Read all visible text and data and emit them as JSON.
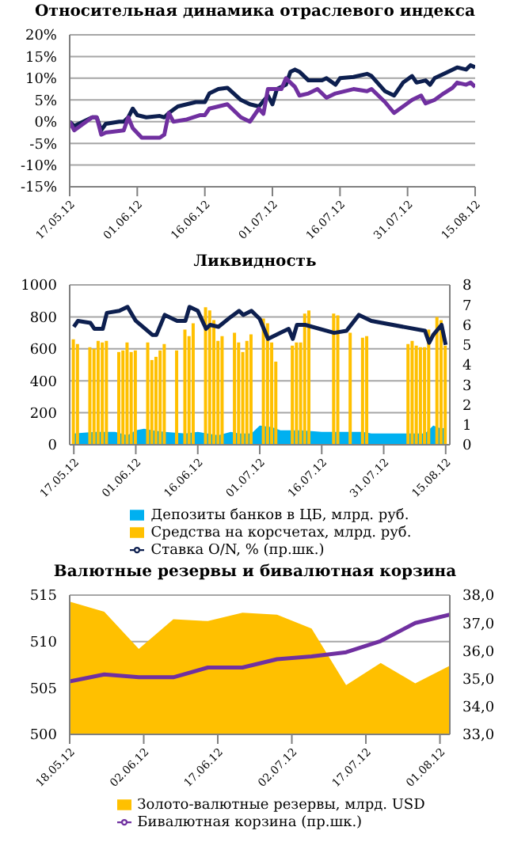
{
  "chart_data": [
    {
      "type": "line",
      "title": "Относительная динамика отраслевого индекса",
      "grid": "y",
      "marker": "none",
      "legend": false,
      "xlim": [
        "2012-05-17",
        "2012-08-15"
      ],
      "xticks": [
        {
          "value": "2012-05-17",
          "label": "17.05.12"
        },
        {
          "value": "2012-06-01",
          "label": "01.06.12"
        },
        {
          "value": "2012-06-16",
          "label": "16.06.12"
        },
        {
          "value": "2012-07-01",
          "label": "01.07.12"
        },
        {
          "value": "2012-07-16",
          "label": "16.07.12"
        },
        {
          "value": "2012-07-31",
          "label": "31.07.12"
        },
        {
          "value": "2012-08-15",
          "label": "15.08.12"
        }
      ],
      "ylim": [
        -15,
        20
      ],
      "yticks": [
        {
          "value": -15,
          "label": "-15%"
        },
        {
          "value": -10,
          "label": "-10%"
        },
        {
          "value": -5,
          "label": "-5%"
        },
        {
          "value": 0,
          "label": "0%"
        },
        {
          "value": 5,
          "label": "5%"
        },
        {
          "value": 10,
          "label": "10%"
        },
        {
          "value": 15,
          "label": "15%"
        },
        {
          "value": 20,
          "label": "20%"
        }
      ],
      "series": [
        {
          "color": "#0d1f4f",
          "x": [
            "2012-05-17",
            "2012-05-18",
            "2012-05-22",
            "2012-05-23",
            "2012-05-24",
            "2012-05-25",
            "2012-05-28",
            "2012-05-29",
            "2012-05-30",
            "2012-05-31",
            "2012-06-01",
            "2012-06-03",
            "2012-06-06",
            "2012-06-07",
            "2012-06-08",
            "2012-06-10",
            "2012-06-12",
            "2012-06-14",
            "2012-06-16",
            "2012-06-17",
            "2012-06-19",
            "2012-06-21",
            "2012-06-24",
            "2012-06-26",
            "2012-06-28",
            "2012-06-30",
            "2012-07-01",
            "2012-07-02",
            "2012-07-04",
            "2012-07-05",
            "2012-07-06",
            "2012-07-07",
            "2012-07-09",
            "2012-07-12",
            "2012-07-13",
            "2012-07-15",
            "2012-07-16",
            "2012-07-19",
            "2012-07-22",
            "2012-07-23",
            "2012-07-26",
            "2012-07-28",
            "2012-07-30",
            "2012-08-01",
            "2012-08-02",
            "2012-08-04",
            "2012-08-05",
            "2012-08-06",
            "2012-08-09",
            "2012-08-11",
            "2012-08-13",
            "2012-08-14",
            "2012-08-15"
          ],
          "values": [
            0,
            -1,
            1,
            1,
            -2,
            -0.5,
            0,
            0,
            1,
            3,
            1.5,
            1,
            1.3,
            1,
            2,
            3.5,
            4,
            4.5,
            4.5,
            6.5,
            7.5,
            7.8,
            5,
            4,
            3.5,
            6,
            4,
            7.5,
            8.5,
            11.5,
            12,
            11.5,
            9.5,
            9.5,
            10,
            8.5,
            10,
            10.3,
            11,
            10.5,
            7,
            6,
            9,
            10.5,
            9,
            9.5,
            8.5,
            10,
            11.5,
            12.5,
            12,
            13,
            12.5
          ]
        },
        {
          "color": "#7030a0",
          "x": [
            "2012-05-17",
            "2012-05-18",
            "2012-05-22",
            "2012-05-23",
            "2012-05-24",
            "2012-05-25",
            "2012-05-29",
            "2012-05-30",
            "2012-05-31",
            "2012-06-02",
            "2012-06-06",
            "2012-06-07",
            "2012-06-08",
            "2012-06-09",
            "2012-06-12",
            "2012-06-15",
            "2012-06-16",
            "2012-06-17",
            "2012-06-21",
            "2012-06-24",
            "2012-06-26",
            "2012-06-28",
            "2012-06-29",
            "2012-06-30",
            "2012-07-03",
            "2012-07-04",
            "2012-07-06",
            "2012-07-07",
            "2012-07-09",
            "2012-07-11",
            "2012-07-13",
            "2012-07-15",
            "2012-07-17",
            "2012-07-19",
            "2012-07-22",
            "2012-07-23",
            "2012-07-26",
            "2012-07-28",
            "2012-07-30",
            "2012-08-01",
            "2012-08-03",
            "2012-08-04",
            "2012-08-06",
            "2012-08-08",
            "2012-08-10",
            "2012-08-11",
            "2012-08-13",
            "2012-08-14",
            "2012-08-15"
          ],
          "values": [
            0,
            -2,
            1,
            1,
            -3,
            -2.5,
            -2,
            1,
            -1.5,
            -3.7,
            -3.7,
            -3,
            2,
            0,
            0.5,
            1.5,
            1.5,
            3,
            4,
            1,
            0,
            3,
            1.8,
            7.5,
            7.5,
            10,
            8,
            6,
            6.5,
            7.5,
            5.5,
            6.5,
            7,
            7.5,
            7,
            7.5,
            4.5,
            2,
            3.5,
            5,
            6,
            4.2,
            5,
            6.5,
            7.8,
            9,
            8.5,
            9,
            8
          ]
        }
      ]
    },
    {
      "type": "bar",
      "title": "Ликвидность",
      "grid": "y",
      "marker": "none",
      "legend": "bottom",
      "xlim": [
        "2012-05-16",
        "2012-08-16"
      ],
      "xticks": [
        {
          "value": "2012-05-17",
          "label": "17.05.12"
        },
        {
          "value": "2012-06-01",
          "label": "01.06.12"
        },
        {
          "value": "2012-06-16",
          "label": "16.06.12"
        },
        {
          "value": "2012-07-01",
          "label": "01.07.12"
        },
        {
          "value": "2012-07-16",
          "label": "16.07.12"
        },
        {
          "value": "2012-07-31",
          "label": "31.07.12"
        },
        {
          "value": "2012-08-15",
          "label": "15.08.12"
        }
      ],
      "ylim": [
        0,
        1000
      ],
      "yticks": [
        0,
        200,
        400,
        600,
        800,
        1000
      ],
      "y2lim": [
        0,
        8
      ],
      "y2ticks": [
        0,
        1,
        2,
        3,
        4,
        5,
        6,
        7,
        8
      ],
      "series": [
        {
          "name": "Депозиты банков в ЦБ, млрд. руб.",
          "type": "area",
          "color": "#00b0f0",
          "x": [
            "2012-05-17",
            "2012-05-22",
            "2012-05-27",
            "2012-05-30",
            "2012-06-01",
            "2012-06-03",
            "2012-06-05",
            "2012-06-08",
            "2012-06-13",
            "2012-06-16",
            "2012-06-21",
            "2012-06-24",
            "2012-06-26",
            "2012-06-29",
            "2012-07-01",
            "2012-07-04",
            "2012-07-06",
            "2012-07-11",
            "2012-07-16",
            "2012-07-21",
            "2012-07-26",
            "2012-07-28",
            "2012-08-10",
            "2012-08-12",
            "2012-08-14",
            "2012-08-15"
          ],
          "values": [
            70,
            80,
            80,
            60,
            90,
            100,
            90,
            80,
            70,
            80,
            60,
            80,
            70,
            70,
            120,
            110,
            90,
            90,
            80,
            80,
            80,
            70,
            70,
            120,
            100,
            110
          ]
        },
        {
          "name": "Средства на корсчетах, млрд. руб.",
          "type": "bar",
          "color": "#ffc000",
          "x": [
            "2012-05-17",
            "2012-05-18",
            "2012-05-21",
            "2012-05-22",
            "2012-05-23",
            "2012-05-24",
            "2012-05-25",
            "2012-05-28",
            "2012-05-29",
            "2012-05-30",
            "2012-05-31",
            "2012-06-01",
            "2012-06-04",
            "2012-06-05",
            "2012-06-06",
            "2012-06-07",
            "2012-06-08",
            "2012-06-11",
            "2012-06-13",
            "2012-06-14",
            "2012-06-15",
            "2012-06-18",
            "2012-06-19",
            "2012-06-20",
            "2012-06-21",
            "2012-06-22",
            "2012-06-25",
            "2012-06-26",
            "2012-06-27",
            "2012-06-28",
            "2012-06-29",
            "2012-07-02",
            "2012-07-03",
            "2012-07-04",
            "2012-07-05",
            "2012-07-09",
            "2012-07-10",
            "2012-07-11",
            "2012-07-12",
            "2012-07-13",
            "2012-07-19",
            "2012-07-20",
            "2012-07-23",
            "2012-07-26",
            "2012-07-27",
            "2012-08-06",
            "2012-08-07",
            "2012-08-08",
            "2012-08-09",
            "2012-08-10",
            "2012-08-11",
            "2012-08-13",
            "2012-08-14",
            "2012-08-15"
          ],
          "values": [
            660,
            630,
            610,
            600,
            650,
            640,
            650,
            580,
            590,
            640,
            580,
            590,
            640,
            530,
            550,
            590,
            630,
            590,
            720,
            680,
            760,
            860,
            840,
            780,
            650,
            680,
            700,
            640,
            580,
            650,
            690,
            790,
            760,
            640,
            520,
            620,
            640,
            640,
            820,
            840,
            820,
            810,
            700,
            670,
            680,
            630,
            650,
            620,
            610,
            610,
            720,
            800,
            780,
            620
          ]
        },
        {
          "name": "Ставка O/N, % (пр.шк.)",
          "type": "line",
          "axis": "y2",
          "color": "#0d1f4f",
          "x": [
            "2012-05-17",
            "2012-05-18",
            "2012-05-21",
            "2012-05-22",
            "2012-05-24",
            "2012-05-25",
            "2012-05-28",
            "2012-05-30",
            "2012-06-01",
            "2012-06-05",
            "2012-06-06",
            "2012-06-08",
            "2012-06-11",
            "2012-06-13",
            "2012-06-14",
            "2012-06-16",
            "2012-06-18",
            "2012-06-19",
            "2012-06-21",
            "2012-06-24",
            "2012-06-26",
            "2012-06-27",
            "2012-06-29",
            "2012-07-01",
            "2012-07-03",
            "2012-07-06",
            "2012-07-08",
            "2012-07-09",
            "2012-07-10",
            "2012-07-12",
            "2012-07-19",
            "2012-07-22",
            "2012-07-25",
            "2012-07-28",
            "2012-08-10",
            "2012-08-11",
            "2012-08-12",
            "2012-08-14",
            "2012-08-15"
          ],
          "values": [
            5.9,
            6.2,
            6.1,
            5.8,
            5.8,
            6.6,
            6.7,
            6.9,
            6.2,
            5.5,
            5.5,
            6.5,
            6.2,
            6.2,
            6.9,
            6.7,
            5.8,
            6,
            5.9,
            6.4,
            6.7,
            6.5,
            6.7,
            6.3,
            5.3,
            5.6,
            5.8,
            5.3,
            6,
            6,
            5.6,
            5.7,
            6.5,
            6.2,
            5.7,
            5.1,
            5.5,
            6,
            5
          ]
        }
      ]
    },
    {
      "type": "area",
      "title": "Валютные резервы и бивалютная корзина",
      "grid": "y",
      "marker": "none",
      "legend": "bottom",
      "xlim": [
        "2012-05-18",
        "2012-08-03"
      ],
      "xticks": [
        {
          "value": "2012-05-18",
          "label": "18.05.12"
        },
        {
          "value": "2012-06-02",
          "label": "02.06.12"
        },
        {
          "value": "2012-06-17",
          "label": "17.06.12"
        },
        {
          "value": "2012-07-02",
          "label": "02.07.12"
        },
        {
          "value": "2012-07-17",
          "label": "17.07.12"
        },
        {
          "value": "2012-08-01",
          "label": "01.08.12"
        }
      ],
      "ylim": [
        500,
        515
      ],
      "yticks": [
        500,
        505,
        510,
        515
      ],
      "y2lim": [
        33,
        38
      ],
      "y2ticks": [
        {
          "value": 33,
          "label": "33,0"
        },
        {
          "value": 34,
          "label": "34,0"
        },
        {
          "value": 35,
          "label": "35,0"
        },
        {
          "value": 36,
          "label": "36,0"
        },
        {
          "value": 37,
          "label": "37,0"
        },
        {
          "value": 38,
          "label": "38,0"
        }
      ],
      "x": [
        "2012-05-18",
        "2012-05-25",
        "2012-06-01",
        "2012-06-08",
        "2012-06-15",
        "2012-06-22",
        "2012-06-29",
        "2012-07-06",
        "2012-07-13",
        "2012-07-20",
        "2012-07-27",
        "2012-08-03"
      ],
      "series": [
        {
          "name": "Золото-валютные резервы, млрд. USD",
          "type": "area",
          "color": "#ffc000",
          "values": [
            514.3,
            513.2,
            509.2,
            512.4,
            512.2,
            513.1,
            512.9,
            511.4,
            505.3,
            507.7,
            505.5,
            507.4
          ]
        },
        {
          "name": "Бивалютная корзина (пр.шк.)",
          "type": "line",
          "axis": "y2",
          "color": "#7030a0",
          "values": [
            34.9,
            35.15,
            35.05,
            35.05,
            35.4,
            35.4,
            35.7,
            35.8,
            35.95,
            36.35,
            37.0,
            37.3
          ]
        }
      ]
    }
  ]
}
